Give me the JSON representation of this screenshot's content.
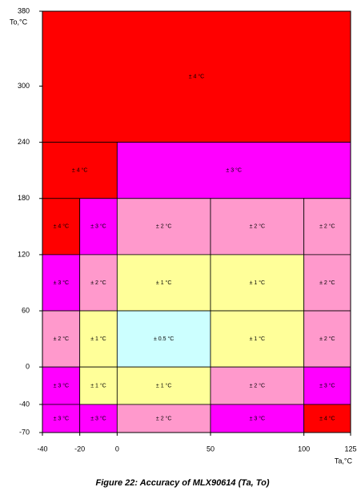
{
  "chart_data": {
    "type": "region",
    "title": "Figure 22: Accuracy of MLX90614 (Ta, To)",
    "x_label": "Ta,°C",
    "y_label": "To,°C",
    "xlim": [
      -40,
      125
    ],
    "xticks": [
      -40,
      -20,
      0,
      50,
      100,
      125
    ],
    "ylim": [
      -70,
      380
    ],
    "yticks": [
      -70,
      -40,
      0,
      60,
      120,
      180,
      240,
      300,
      380
    ],
    "regions": [
      {
        "x": [
          -40,
          125
        ],
        "y": [
          240,
          380
        ],
        "label": "± 4 °C",
        "color": "#ff0000"
      },
      {
        "x": [
          -40,
          0
        ],
        "y": [
          180,
          240
        ],
        "label": "± 4 °C",
        "color": "#ff0000"
      },
      {
        "x": [
          0,
          125
        ],
        "y": [
          180,
          240
        ],
        "label": "± 3 °C",
        "color": "#ff00ff"
      },
      {
        "x": [
          -40,
          -20
        ],
        "y": [
          120,
          180
        ],
        "label": "± 4 °C",
        "color": "#ff0000"
      },
      {
        "x": [
          -20,
          0
        ],
        "y": [
          120,
          180
        ],
        "label": "± 3 °C",
        "color": "#ff00ff"
      },
      {
        "x": [
          0,
          50
        ],
        "y": [
          120,
          180
        ],
        "label": "± 2 °C",
        "color": "#ff99cc"
      },
      {
        "x": [
          50,
          100
        ],
        "y": [
          120,
          180
        ],
        "label": "± 2 °C",
        "color": "#ff99cc"
      },
      {
        "x": [
          100,
          125
        ],
        "y": [
          120,
          180
        ],
        "label": "± 2 °C",
        "color": "#ff99cc"
      },
      {
        "x": [
          -40,
          -20
        ],
        "y": [
          60,
          120
        ],
        "label": "± 3 °C",
        "color": "#ff00ff"
      },
      {
        "x": [
          -20,
          0
        ],
        "y": [
          60,
          120
        ],
        "label": "± 2 °C",
        "color": "#ff99cc"
      },
      {
        "x": [
          0,
          50
        ],
        "y": [
          60,
          120
        ],
        "label": "± 1 °C",
        "color": "#ffff99"
      },
      {
        "x": [
          50,
          100
        ],
        "y": [
          60,
          120
        ],
        "label": "± 1 °C",
        "color": "#ffff99"
      },
      {
        "x": [
          100,
          125
        ],
        "y": [
          60,
          120
        ],
        "label": "± 2 °C",
        "color": "#ff99cc"
      },
      {
        "x": [
          -40,
          -20
        ],
        "y": [
          0,
          60
        ],
        "label": "± 2 °C",
        "color": "#ff99cc"
      },
      {
        "x": [
          -20,
          0
        ],
        "y": [
          0,
          60
        ],
        "label": "± 1 °C",
        "color": "#ffff99"
      },
      {
        "x": [
          0,
          50
        ],
        "y": [
          0,
          60
        ],
        "label": "± 0.5 °C",
        "color": "#ccffff"
      },
      {
        "x": [
          50,
          100
        ],
        "y": [
          0,
          60
        ],
        "label": "± 1 °C",
        "color": "#ffff99"
      },
      {
        "x": [
          100,
          125
        ],
        "y": [
          0,
          60
        ],
        "label": "± 2 °C",
        "color": "#ff99cc"
      },
      {
        "x": [
          -40,
          -20
        ],
        "y": [
          -40,
          0
        ],
        "label": "± 3 °C",
        "color": "#ff00ff"
      },
      {
        "x": [
          -20,
          0
        ],
        "y": [
          -40,
          0
        ],
        "label": "± 1 °C",
        "color": "#ffff99"
      },
      {
        "x": [
          0,
          50
        ],
        "y": [
          -40,
          0
        ],
        "label": "± 1 °C",
        "color": "#ffff99"
      },
      {
        "x": [
          50,
          100
        ],
        "y": [
          -40,
          0
        ],
        "label": "± 2 °C",
        "color": "#ff99cc"
      },
      {
        "x": [
          100,
          125
        ],
        "y": [
          -40,
          0
        ],
        "label": "± 3 °C",
        "color": "#ff00ff"
      },
      {
        "x": [
          -40,
          -20
        ],
        "y": [
          -70,
          -40
        ],
        "label": "± 3 °C",
        "color": "#ff00ff"
      },
      {
        "x": [
          -20,
          0
        ],
        "y": [
          -70,
          -40
        ],
        "label": "± 3 °C",
        "color": "#ff00ff"
      },
      {
        "x": [
          0,
          50
        ],
        "y": [
          -70,
          -40
        ],
        "label": "± 2 °C",
        "color": "#ff99cc"
      },
      {
        "x": [
          50,
          100
        ],
        "y": [
          -70,
          -40
        ],
        "label": "± 3 °C",
        "color": "#ff00ff"
      },
      {
        "x": [
          100,
          125
        ],
        "y": [
          -70,
          -40
        ],
        "label": "± 4 °C",
        "color": "#ff0000"
      }
    ]
  }
}
